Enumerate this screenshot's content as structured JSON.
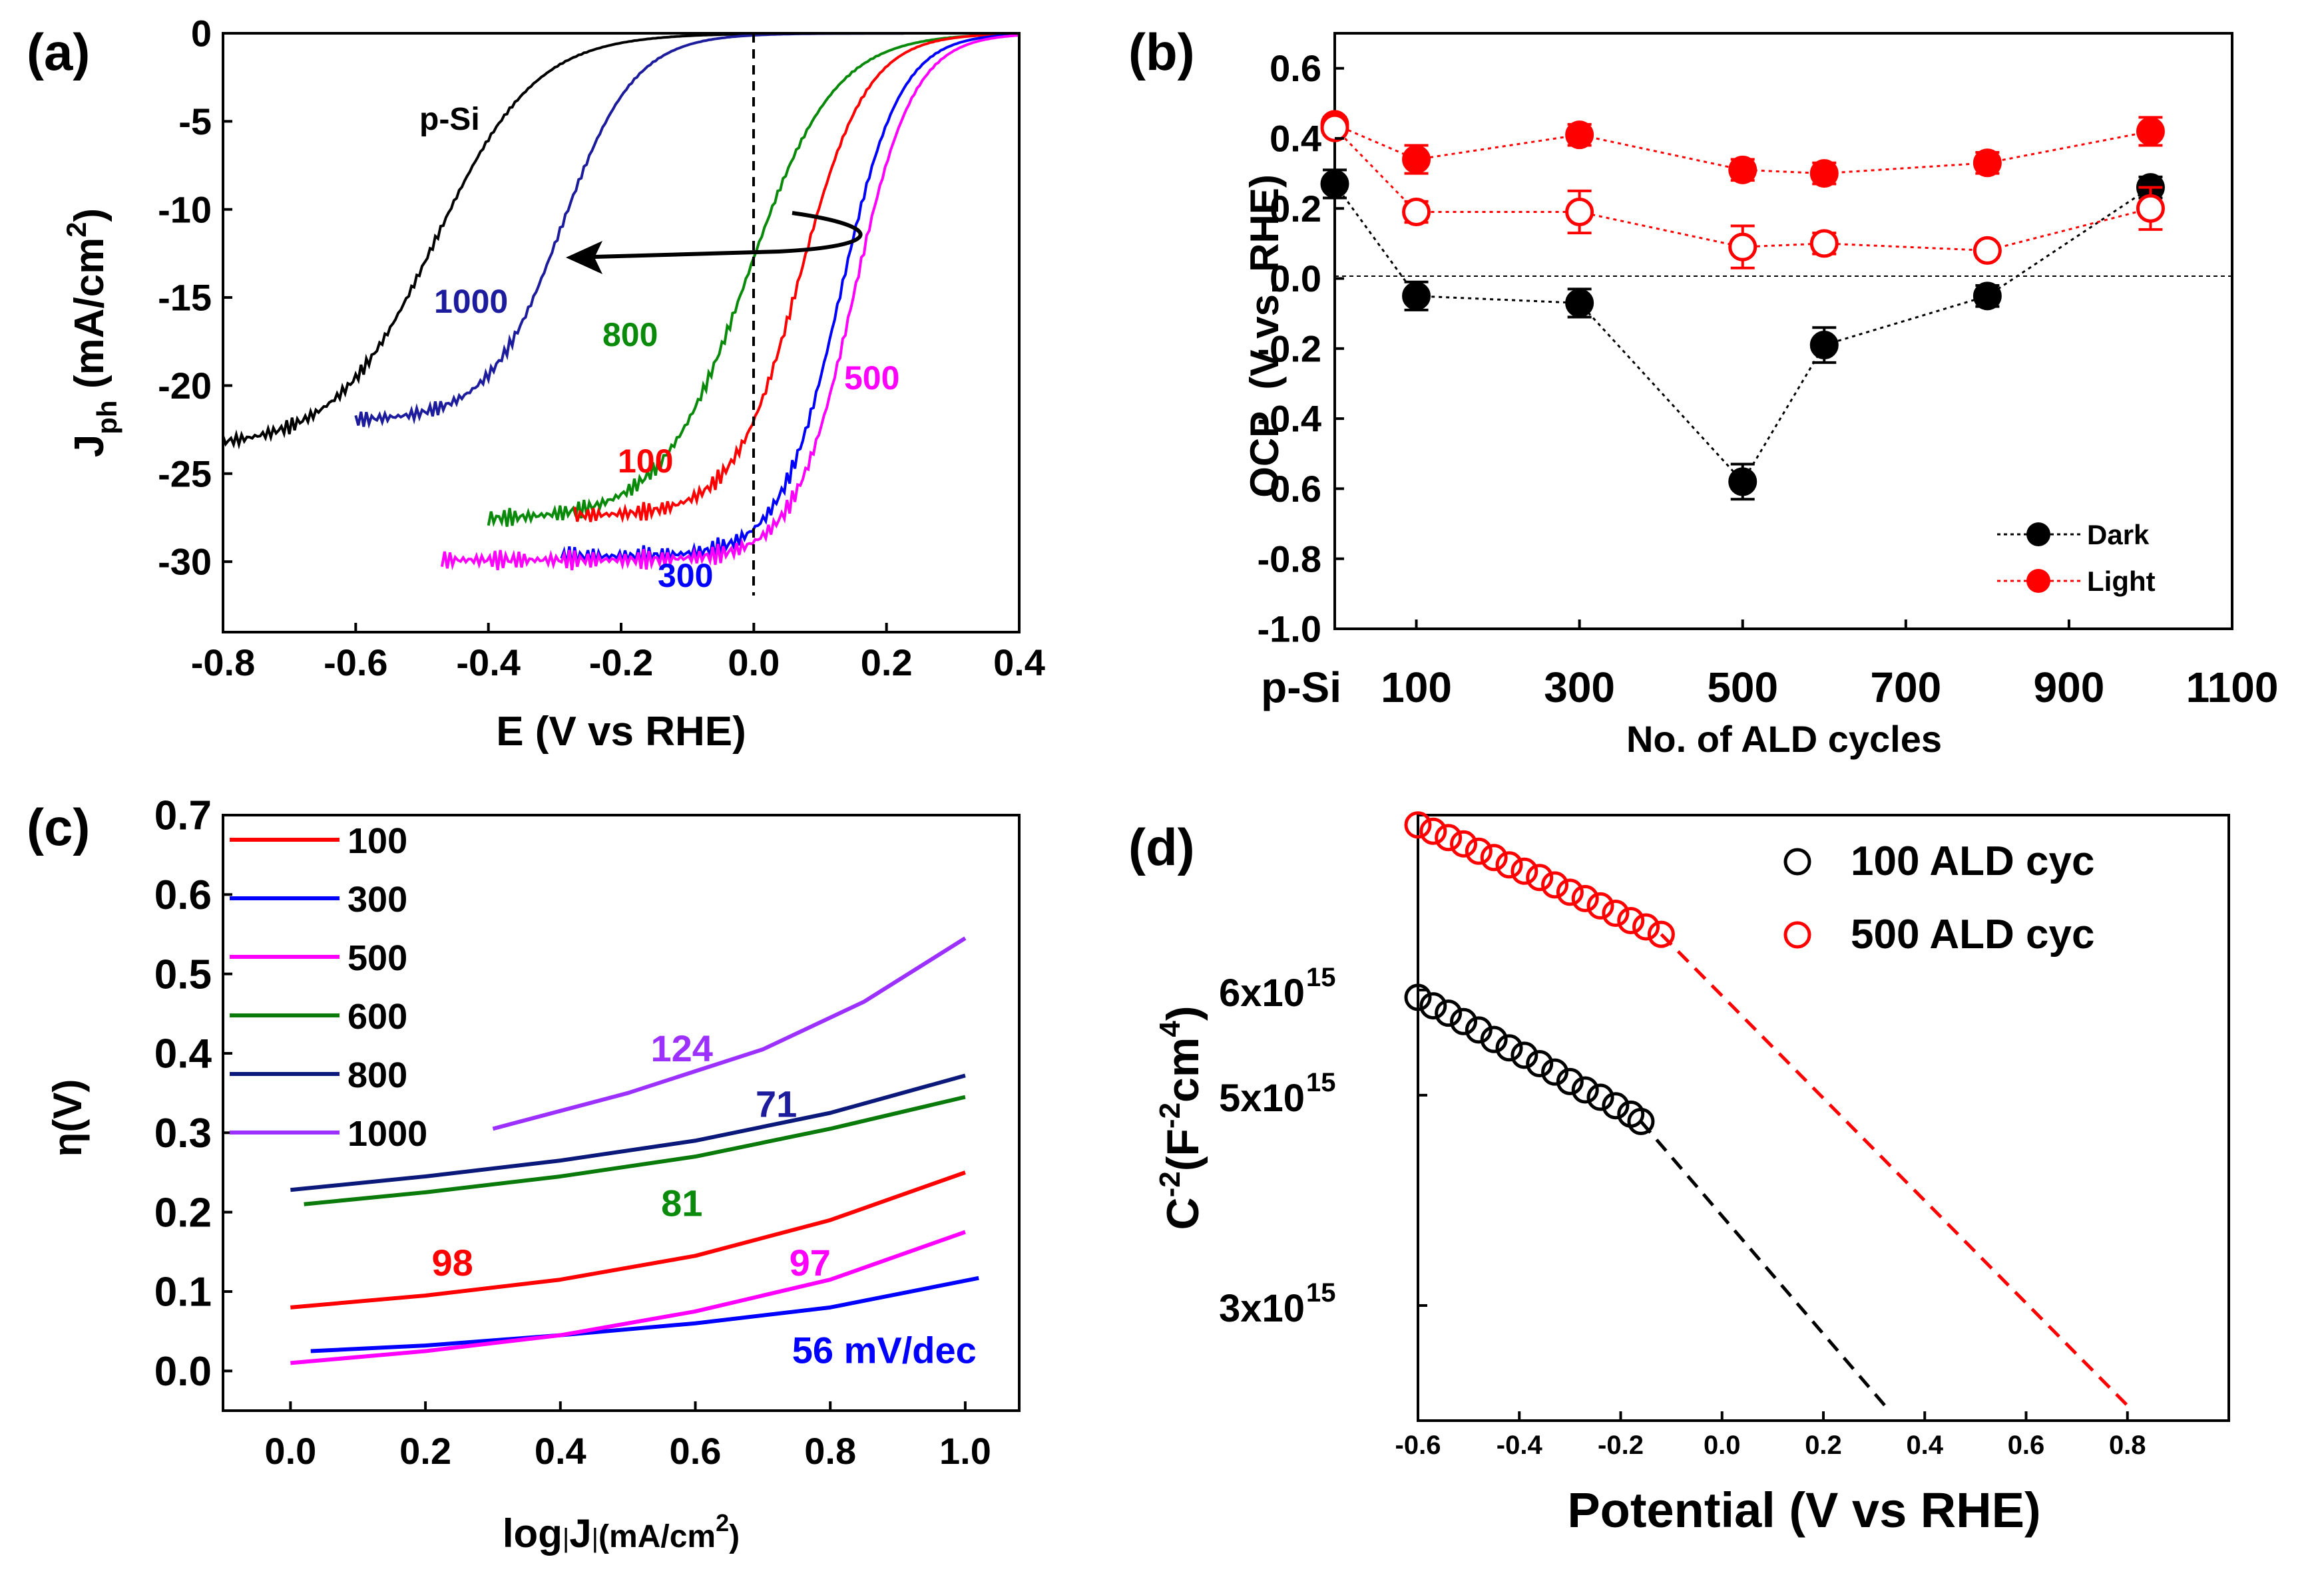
{
  "chart_data": [
    {
      "panel": "(a)",
      "type": "line",
      "title": "",
      "xlabel": "E (V vs RHE)",
      "ylabel_main": "J",
      "ylabel_sub": "ph",
      "ylabel_unit_open": " (mA/cm",
      "ylabel_unit_sup": "2",
      "ylabel_unit_close": ")",
      "xlim": [
        -0.8,
        0.4
      ],
      "ylim": [
        -34,
        0
      ],
      "xticks": [
        -0.8,
        -0.6,
        -0.4,
        -0.2,
        0.0,
        0.2,
        0.4
      ],
      "xtick_labels": [
        "-0.8",
        "-0.6",
        "-0.4",
        "-0.2",
        "0.0",
        "0.2",
        "0.4"
      ],
      "yticks": [
        0,
        -5,
        -10,
        -15,
        -20,
        -25,
        -30
      ],
      "ytick_labels": [
        "0",
        "-5",
        "-10",
        "-15",
        "-20",
        "-25",
        "-30"
      ],
      "series": [
        {
          "name": "p-Si",
          "label": "p-Si",
          "color": "#000000",
          "x_start": -0.8,
          "x_end": 0.4,
          "e_half": -0.48,
          "width": 0.075,
          "j_lim": -23.5
        },
        {
          "name": "1000",
          "label": "1000",
          "color": "#1c1c9c",
          "x_start": -0.6,
          "x_end": 0.4,
          "e_half": -0.29,
          "width": 0.055,
          "j_lim": -22.0
        },
        {
          "name": "800",
          "label": "800",
          "color": "#0a8a0a",
          "x_start": -0.4,
          "x_end": 0.4,
          "e_half": -0.01,
          "width": 0.065,
          "j_lim": -27.6
        },
        {
          "name": "100",
          "label": "100",
          "color": "#ff0000",
          "x_start": -0.27,
          "x_end": 0.4,
          "e_half": 0.07,
          "width": 0.05,
          "j_lim": -27.4
        },
        {
          "name": "300",
          "label": "300",
          "color": "#0000ff",
          "x_start": -0.29,
          "x_end": 0.4,
          "e_half": 0.13,
          "width": 0.045,
          "j_lim": -29.7
        },
        {
          "name": "500",
          "label": "500",
          "color": "#ff00ff",
          "x_start": -0.47,
          "x_end": 0.4,
          "e_half": 0.15,
          "width": 0.045,
          "j_lim": -29.9
        }
      ],
      "annotations": {
        "vertical_dashed_line_at": 0.0,
        "arrow_from": [
          0.15,
          -11.5
        ],
        "arrow_to": [
          -0.27,
          -12.7
        ]
      }
    },
    {
      "panel": "(b)",
      "type": "scatter",
      "title": "",
      "xlabel": "No. of ALD cycles",
      "ylabel": "OCP  (V vs. RHE)",
      "xlim": [
        0,
        1100
      ],
      "ylim": [
        -1.0,
        0.7
      ],
      "xticks": [
        0,
        100,
        300,
        500,
        700,
        900,
        1100
      ],
      "xtick_labels": [
        "p-Si",
        "100",
        "300",
        "500",
        "700",
        "900",
        "1100"
      ],
      "yticks": [
        0.6,
        0.4,
        0.2,
        0.0,
        -0.2,
        -0.4,
        -0.6,
        -0.8,
        -1.0
      ],
      "ytick_labels": [
        "0.6",
        "0.4",
        "0.2",
        "0.0",
        "-0.2",
        "-0.4",
        "-0.6",
        "-0.8",
        "-1.0"
      ],
      "x": [
        0,
        100,
        300,
        500,
        600,
        800,
        1000
      ],
      "series": [
        {
          "name": "Dark",
          "legend": "Dark",
          "color": "#000000",
          "filled": true,
          "values": [
            0.27,
            -0.05,
            -0.07,
            -0.58,
            -0.19,
            -0.05,
            0.26
          ],
          "err": [
            0.04,
            0.04,
            0.04,
            0.05,
            0.05,
            0.03,
            0.03
          ]
        },
        {
          "name": "Light",
          "legend": "Light",
          "color": "#ff0000",
          "filled": true,
          "values": [
            0.44,
            0.34,
            0.41,
            0.31,
            0.3,
            0.33,
            0.42
          ],
          "err": [
            0.02,
            0.04,
            0.03,
            0.03,
            0.03,
            0.03,
            0.04
          ]
        },
        {
          "name": "Light (open)",
          "color": "#ff0000",
          "filled": false,
          "values": [
            0.43,
            0.19,
            0.19,
            0.09,
            0.1,
            0.08,
            0.2
          ],
          "err": [
            0.02,
            0.03,
            0.06,
            0.06,
            0.03,
            0.02,
            0.06
          ]
        }
      ],
      "legend_location": "bottom-right"
    },
    {
      "panel": "(c)",
      "type": "line",
      "title": "",
      "xlabel_prefix": "log",
      "xlabel_mid": "J",
      "xlabel_unit_open": "(mA/cm",
      "xlabel_unit_sup": "2",
      "xlabel_unit_close": ")",
      "ylabel": "η(V)",
      "xlim": [
        -0.1,
        1.08
      ],
      "ylim": [
        -0.05,
        0.7
      ],
      "xticks": [
        0.0,
        0.2,
        0.4,
        0.6,
        0.8,
        1.0
      ],
      "xtick_labels": [
        "0.0",
        "0.2",
        "0.4",
        "0.6",
        "0.8",
        "1.0"
      ],
      "yticks": [
        0.0,
        0.1,
        0.2,
        0.3,
        0.4,
        0.5,
        0.6,
        0.7
      ],
      "ytick_labels": [
        "0.0",
        "0.1",
        "0.2",
        "0.3",
        "0.4",
        "0.5",
        "0.6",
        "0.7"
      ],
      "series": [
        {
          "name": "100",
          "color": "#ff0000",
          "points": [
            [
              0.0,
              0.08
            ],
            [
              0.2,
              0.095
            ],
            [
              0.4,
              0.115
            ],
            [
              0.6,
              0.145
            ],
            [
              0.8,
              0.19
            ],
            [
              1.0,
              0.25
            ]
          ]
        },
        {
          "name": "300",
          "color": "#0000ff",
          "points": [
            [
              0.03,
              0.025
            ],
            [
              0.2,
              0.032
            ],
            [
              0.4,
              0.045
            ],
            [
              0.6,
              0.06
            ],
            [
              0.8,
              0.08
            ],
            [
              1.02,
              0.117
            ]
          ]
        },
        {
          "name": "500",
          "color": "#ff00ff",
          "points": [
            [
              0.0,
              0.01
            ],
            [
              0.2,
              0.025
            ],
            [
              0.4,
              0.045
            ],
            [
              0.6,
              0.075
            ],
            [
              0.8,
              0.115
            ],
            [
              1.0,
              0.175
            ]
          ]
        },
        {
          "name": "600",
          "color": "#0a7a0a",
          "points": [
            [
              0.02,
              0.21
            ],
            [
              0.2,
              0.225
            ],
            [
              0.4,
              0.245
            ],
            [
              0.6,
              0.27
            ],
            [
              0.8,
              0.305
            ],
            [
              1.0,
              0.345
            ]
          ]
        },
        {
          "name": "800",
          "color": "#0b1a7a",
          "points": [
            [
              0.0,
              0.228
            ],
            [
              0.2,
              0.245
            ],
            [
              0.4,
              0.265
            ],
            [
              0.6,
              0.29
            ],
            [
              0.8,
              0.325
            ],
            [
              1.0,
              0.372
            ]
          ]
        },
        {
          "name": "1000",
          "color": "#9b30ff",
          "points": [
            [
              0.3,
              0.305
            ],
            [
              0.5,
              0.35
            ],
            [
              0.7,
              0.405
            ],
            [
              0.85,
              0.465
            ],
            [
              1.0,
              0.545
            ]
          ]
        }
      ],
      "annotations": [
        {
          "text": "124",
          "color": "#9b30ff",
          "x": 0.58,
          "y": 0.39
        },
        {
          "text": "71",
          "color": "#1c1c9c",
          "x": 0.72,
          "y": 0.32
        },
        {
          "text": "81",
          "color": "#0a8a0a",
          "x": 0.58,
          "y": 0.195
        },
        {
          "text": "98",
          "color": "#ff0000",
          "x": 0.24,
          "y": 0.12
        },
        {
          "text": "97",
          "color": "#ff00ff",
          "x": 0.77,
          "y": 0.12
        },
        {
          "text": "56 mV/dec",
          "color": "#0000ff",
          "x": 0.88,
          "y": 0.01
        }
      ],
      "legend_location": "top-left"
    },
    {
      "panel": "(d)",
      "type": "scatter",
      "title": "",
      "xlabel": "Potential (V vs RHE)",
      "ylabel_main": "C",
      "ylabel_exp1": "-2",
      "ylabel_open": "(F",
      "ylabel_exp2": "-2",
      "ylabel_cm": "cm",
      "ylabel_exp3": "4",
      "ylabel_close": ")",
      "xlim": [
        -0.6,
        1.0
      ],
      "ylim": [
        2000000000000000.0,
        7600000000000000.0
      ],
      "xticks": [
        -0.6,
        -0.4,
        -0.2,
        0.0,
        0.2,
        0.4,
        0.6,
        0.8
      ],
      "xtick_labels": [
        "-0.6",
        "-0.4",
        "-0.2",
        "0.0",
        "0.2",
        "0.4",
        "0.6",
        "0.8"
      ],
      "yticks": [
        3000000000000000.0,
        5000000000000000.0,
        6000000000000000.0
      ],
      "ytick_labels": [
        "3x10",
        "5x10",
        "6x10"
      ],
      "ytick_exponent": "15",
      "series": [
        {
          "name": "100 ALD cyc",
          "legend": "100 ALD cyc",
          "color": "#000000",
          "x": [
            -0.6,
            -0.57,
            -0.54,
            -0.51,
            -0.48,
            -0.45,
            -0.42,
            -0.39,
            -0.36,
            -0.33,
            -0.3,
            -0.27,
            -0.24,
            -0.21,
            -0.18,
            -0.16
          ],
          "values": [
            5930000000000000.0,
            5850000000000000.0,
            5780000000000000.0,
            5700000000000000.0,
            5620000000000000.0,
            5530000000000000.0,
            5450000000000000.0,
            5380000000000000.0,
            5300000000000000.0,
            5220000000000000.0,
            5130000000000000.0,
            5050000000000000.0,
            4980000000000000.0,
            4900000000000000.0,
            4820000000000000.0,
            4750000000000000.0
          ],
          "fit_x": [
            -0.16,
            0.33
          ],
          "fit_y": [
            4750000000000000.0,
            2000000000000000.0
          ]
        },
        {
          "name": "500 ALD cyc",
          "legend": "500 ALD cyc",
          "color": "#ff0000",
          "x": [
            -0.6,
            -0.57,
            -0.54,
            -0.51,
            -0.48,
            -0.45,
            -0.42,
            -0.39,
            -0.36,
            -0.33,
            -0.3,
            -0.27,
            -0.24,
            -0.21,
            -0.18,
            -0.15,
            -0.12
          ],
          "values": [
            7570000000000000.0,
            7510000000000000.0,
            7450000000000000.0,
            7390000000000000.0,
            7320000000000000.0,
            7260000000000000.0,
            7190000000000000.0,
            7130000000000000.0,
            7070000000000000.0,
            7000000000000000.0,
            6930000000000000.0,
            6870000000000000.0,
            6800000000000000.0,
            6730000000000000.0,
            6660000000000000.0,
            6600000000000000.0,
            6530000000000000.0
          ],
          "fit_x": [
            -0.12,
            0.81
          ],
          "fit_y": [
            6530000000000000.0,
            2000000000000000.0
          ]
        }
      ],
      "legend_location": "top-right"
    }
  ]
}
